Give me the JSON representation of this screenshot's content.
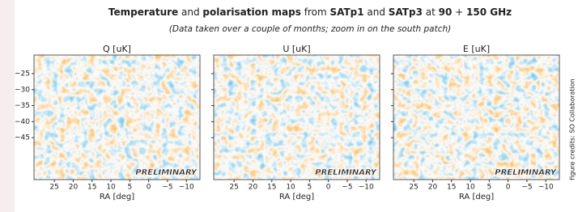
{
  "header": {
    "title": [
      {
        "text": "Temperature",
        "bold": true
      },
      {
        "text": " and ",
        "bold": false
      },
      {
        "text": "polarisation maps",
        "bold": true
      },
      {
        "text": " from ",
        "bold": false
      },
      {
        "text": "SATp1",
        "bold": true
      },
      {
        "text": " and ",
        "bold": false
      },
      {
        "text": "SATp3",
        "bold": true
      },
      {
        "text": " at ",
        "bold": false
      },
      {
        "text": "90",
        "bold": true
      },
      {
        "text": " + ",
        "bold": false
      },
      {
        "text": "150 GHz",
        "bold": true
      }
    ],
    "subtitle": "(Data taken over a couple of months; zoom in on the south patch)"
  },
  "axes": {
    "xlabel": "RA [deg]",
    "xlim": [
      30.4,
      -13.6
    ],
    "xticks": [
      25,
      20,
      15,
      10,
      5,
      0,
      {
        "value": -5,
        "label": "−5"
      },
      {
        "value": -10,
        "label": "−10"
      }
    ],
    "ylim": [
      -19.2,
      -58.1
    ],
    "yticks": [
      {
        "value": -25,
        "label": "−25"
      },
      {
        "value": -30,
        "label": "−30"
      },
      {
        "value": -35,
        "label": "−35"
      },
      {
        "value": -40,
        "label": "−40"
      },
      {
        "value": -45,
        "label": "−45"
      }
    ]
  },
  "panels": [
    {
      "title": "Q [uK]",
      "stamp": "PRELIMINARY"
    },
    {
      "title": "U [uK]",
      "stamp": "PRELIMINARY"
    },
    {
      "title": "E [uK]",
      "stamp": "PRELIMINARY"
    }
  ],
  "credit": "figure credits: SO Collaboration"
}
